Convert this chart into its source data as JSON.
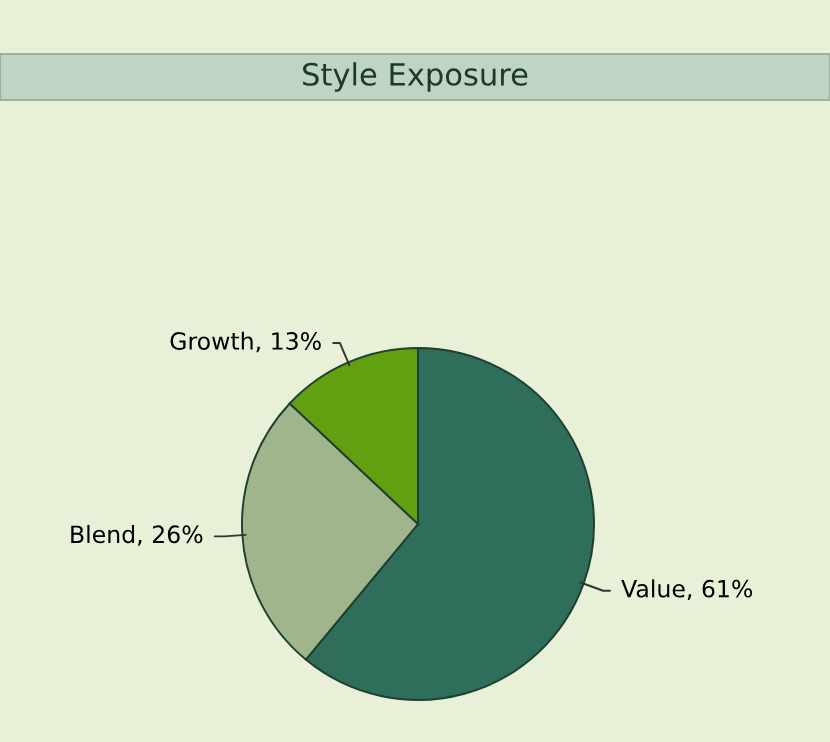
{
  "chart_data": {
    "type": "pie",
    "title": "Style Exposure",
    "categories": [
      "Value",
      "Blend",
      "Growth"
    ],
    "values": [
      61,
      26,
      13
    ],
    "value_labels": [
      "61%",
      "26%",
      "13%"
    ],
    "colors": [
      "#2e6e5a",
      "#a0b58c",
      "#62a012"
    ],
    "legend": false
  }
}
